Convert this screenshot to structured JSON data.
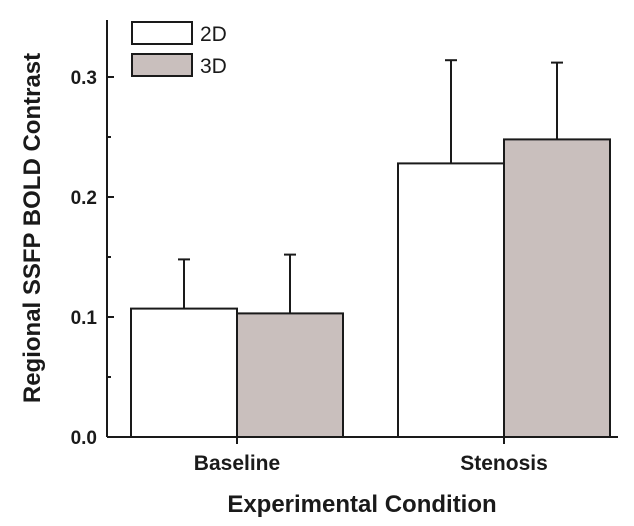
{
  "chart_data": {
    "type": "bar",
    "categories": [
      "Baseline",
      "Stenosis"
    ],
    "series": [
      {
        "name": "2D",
        "values": [
          0.107,
          0.228
        ],
        "errors": [
          0.041,
          0.086
        ],
        "color": "#ffffff"
      },
      {
        "name": "3D",
        "values": [
          0.103,
          0.248
        ],
        "errors": [
          0.049,
          0.064
        ],
        "color": "#c9bfbd"
      }
    ],
    "xlabel": "Experimental Condition",
    "ylabel": "Regional SSFP BOLD Contrast",
    "ylim": [
      0.0,
      0.35
    ],
    "yticks": [
      0.0,
      0.1,
      0.2,
      0.3
    ],
    "ytick_labels": [
      "0.0",
      "0.1",
      "0.2",
      "0.3"
    ],
    "grid": false,
    "legend_position": "top-left",
    "error_bars": "upper-only"
  }
}
